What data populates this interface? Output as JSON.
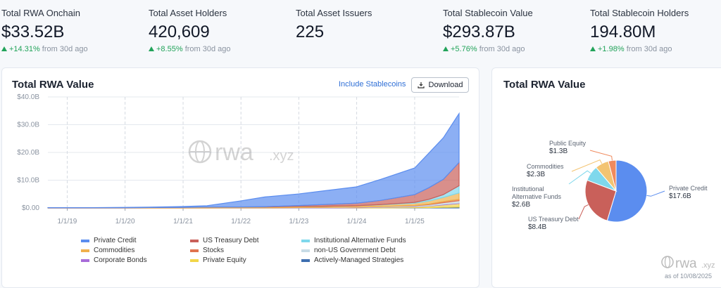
{
  "stats": [
    {
      "label": "Total RWA Onchain",
      "value": "$33.52B",
      "change": "+14.31%",
      "period": "from 30d ago"
    },
    {
      "label": "Total Asset Holders",
      "value": "420,609",
      "change": "+8.55%",
      "period": "from 30d ago"
    },
    {
      "label": "Total Asset Issuers",
      "value": "225"
    },
    {
      "label": "Total Stablecoin Value",
      "value": "$293.87B",
      "change": "+5.76%",
      "period": "from 30d ago"
    },
    {
      "label": "Total Stablecoin Holders",
      "value": "194.80M",
      "change": "+1.98%",
      "period": "from 30d ago"
    }
  ],
  "controls": {
    "include": "Include Stablecoins",
    "download": "Download"
  },
  "watermark": {
    "name": "rwa",
    "suffix": ".xyz"
  },
  "as_of": "as of 10/08/2025",
  "chart_data": [
    {
      "type": "area",
      "title": "Total RWA Value",
      "x": [
        "2018-09-01",
        "2019-06-01",
        "2020-01-01",
        "2020-06-01",
        "2021-01-01",
        "2021-06-01",
        "2022-01-01",
        "2022-06-01",
        "2023-01-01",
        "2023-06-01",
        "2024-01-01",
        "2024-06-01",
        "2025-01-01",
        "2025-04-01",
        "2025-07-01",
        "2025-10-08"
      ],
      "xlim": [
        "2018-09-01",
        "2025-10-08"
      ],
      "xticks": [
        {
          "value": "2019-01-01",
          "label": "1/1/19"
        },
        {
          "value": "2020-01-01",
          "label": "1/1/20"
        },
        {
          "value": "2021-01-01",
          "label": "1/1/21"
        },
        {
          "value": "2022-01-01",
          "label": "1/1/22"
        },
        {
          "value": "2023-01-01",
          "label": "1/1/23"
        },
        {
          "value": "2024-01-01",
          "label": "1/1/24"
        },
        {
          "value": "2025-01-01",
          "label": "1/1/25"
        }
      ],
      "ylim": [
        0,
        40
      ],
      "yticks": [
        {
          "value": 0,
          "label": "$0.00"
        },
        {
          "value": 10,
          "label": "$10.0B"
        },
        {
          "value": 20,
          "label": "$20.0B"
        },
        {
          "value": 30,
          "label": "$30.0B"
        },
        {
          "value": 40,
          "label": "$40.0B"
        }
      ],
      "stacked": true,
      "grid": true,
      "series": [
        {
          "name": "Private Credit",
          "color": "#5b8def",
          "values": [
            0.05,
            0.05,
            0.1,
            0.15,
            0.3,
            0.5,
            2.2,
            3.5,
            4.2,
            4.9,
            5.9,
            7.6,
            9.6,
            12.5,
            15,
            17.6
          ]
        },
        {
          "name": "US Treasury Debt",
          "color": "#c9605a",
          "values": [
            0,
            0,
            0,
            0,
            0,
            0,
            0,
            0.1,
            0.3,
            0.6,
            0.9,
            1.5,
            2.8,
            4.2,
            5.5,
            8.4
          ]
        },
        {
          "name": "Institutional Alternative Funds",
          "color": "#7fd8ec",
          "values": [
            0,
            0,
            0,
            0,
            0,
            0,
            0,
            0,
            0,
            0,
            0,
            0.1,
            0.3,
            0.6,
            1.0,
            2.6
          ]
        },
        {
          "name": "Commodities",
          "color": "#f0b04c",
          "values": [
            0.05,
            0.05,
            0.1,
            0.15,
            0.2,
            0.3,
            0.3,
            0.3,
            0.4,
            0.4,
            0.5,
            0.6,
            0.8,
            1.1,
            1.5,
            2.3
          ]
        },
        {
          "name": "Stocks",
          "color": "#e0734f",
          "values": [
            0,
            0,
            0,
            0,
            0,
            0,
            0,
            0,
            0,
            0,
            0,
            0,
            0.1,
            0.2,
            0.4,
            0.5
          ]
        },
        {
          "name": "non-US Government Debt",
          "color": "#c8dce6",
          "values": [
            0,
            0,
            0,
            0,
            0,
            0,
            0,
            0,
            0.05,
            0.1,
            0.1,
            0.2,
            0.3,
            0.4,
            0.6,
            0.8
          ]
        },
        {
          "name": "Corporate Bonds",
          "color": "#a86cd9",
          "values": [
            0,
            0,
            0,
            0,
            0,
            0,
            0.05,
            0.05,
            0.1,
            0.1,
            0.1,
            0.1,
            0.1,
            0.1,
            0.2,
            0.2
          ]
        },
        {
          "name": "Private Equity",
          "color": "#f2d649",
          "values": [
            0,
            0,
            0,
            0,
            0,
            0,
            0,
            0,
            0,
            0,
            0.1,
            0.2,
            0.3,
            0.6,
            0.9,
            1.3
          ]
        },
        {
          "name": "Actively-Managed Strategies",
          "color": "#3e6fb0",
          "values": [
            0,
            0,
            0,
            0,
            0,
            0,
            0,
            0,
            0,
            0,
            0,
            0,
            0.1,
            0.1,
            0.2,
            0.3
          ]
        }
      ]
    },
    {
      "type": "pie",
      "title": "Total RWA Value",
      "categories": [
        "Private Credit",
        "US Treasury Debt",
        "Institutional Alternative Funds",
        "Commodities",
        "Public Equity"
      ],
      "values": [
        17.6,
        8.4,
        2.6,
        2.3,
        1.3
      ],
      "value_labels": [
        "$17.6B",
        "$8.4B",
        "$2.6B",
        "$2.3B",
        "$1.3B"
      ],
      "colors": [
        "#5b8def",
        "#c9605a",
        "#7fd8ec",
        "#f3c472",
        "#f08a5d"
      ]
    }
  ]
}
